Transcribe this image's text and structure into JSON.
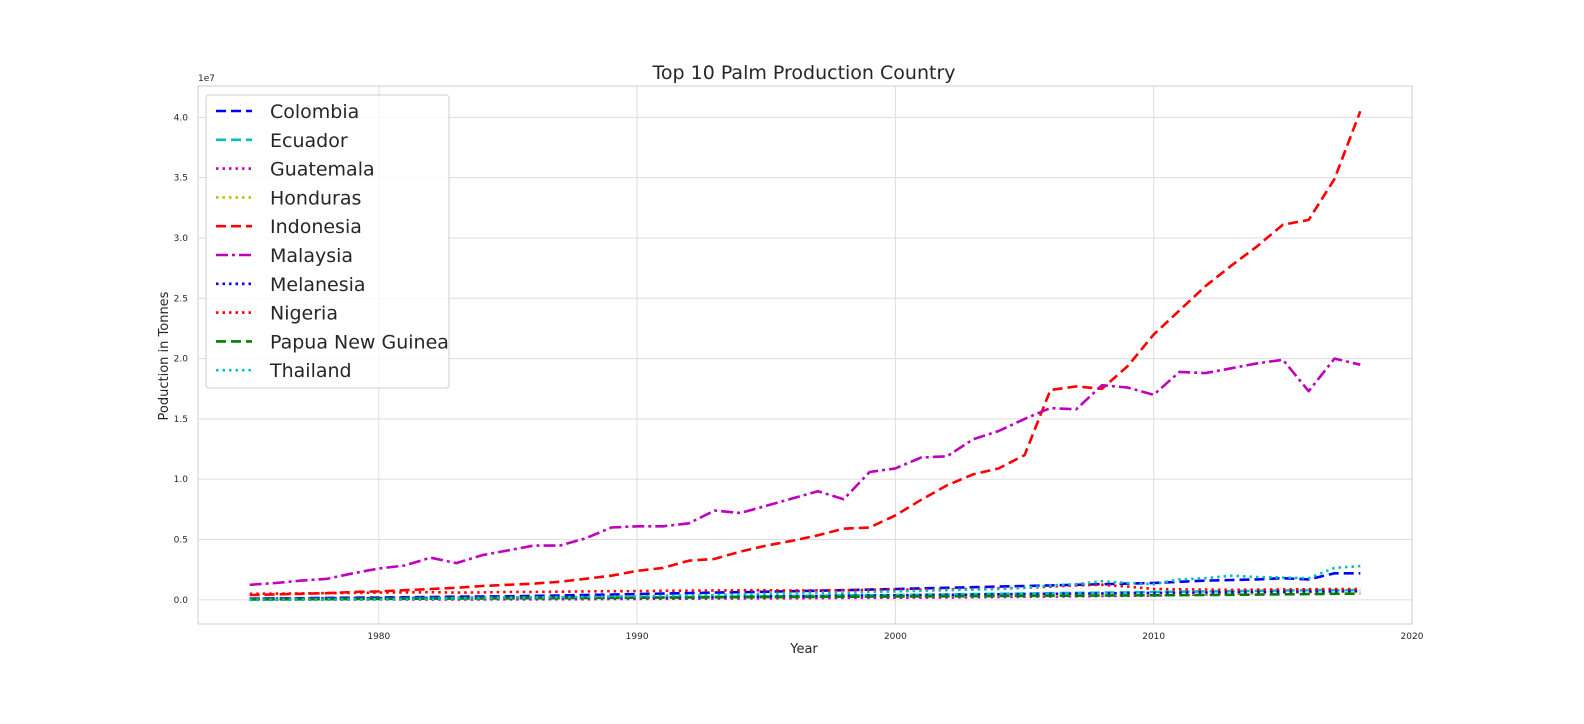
{
  "chart_data": {
    "type": "line",
    "title": "Top 10 Palm Production Country",
    "xlabel": "Year",
    "ylabel": "Poduction in Tonnes",
    "y_multiplier_label": "1e7",
    "xlim": [
      1973,
      2020
    ],
    "ylim": [
      -0.2,
      4.26
    ],
    "y_unit_scale": 10000000,
    "x_ticks": [
      1980,
      1990,
      2000,
      2010,
      2020
    ],
    "x_tick_labels": [
      "1980",
      "1990",
      "2000",
      "2010",
      "2020"
    ],
    "y_ticks": [
      0.0,
      0.5,
      1.0,
      1.5,
      2.0,
      2.5,
      3.0,
      3.5,
      4.0
    ],
    "y_tick_labels": [
      "0.0",
      "0.5",
      "1.0",
      "1.5",
      "2.0",
      "2.5",
      "3.0",
      "3.5",
      "4.0"
    ],
    "grid": true,
    "legend_position": "top-left",
    "x": [
      1975,
      1976,
      1977,
      1978,
      1979,
      1980,
      1981,
      1982,
      1983,
      1984,
      1985,
      1986,
      1987,
      1988,
      1989,
      1990,
      1991,
      1992,
      1993,
      1994,
      1995,
      1996,
      1997,
      1998,
      1999,
      2000,
      2001,
      2002,
      2003,
      2004,
      2005,
      2006,
      2007,
      2008,
      2009,
      2010,
      2011,
      2012,
      2013,
      2014,
      2015,
      2016,
      2017,
      2018
    ],
    "series": [
      {
        "name": "Colombia",
        "color": "#0000ff",
        "dash": "dashed",
        "values": [
          0.01,
          0.012,
          0.014,
          0.016,
          0.018,
          0.02,
          0.022,
          0.024,
          0.026,
          0.028,
          0.03,
          0.033,
          0.036,
          0.04,
          0.044,
          0.048,
          0.052,
          0.056,
          0.06,
          0.064,
          0.068,
          0.072,
          0.076,
          0.08,
          0.085,
          0.09,
          0.095,
          0.1,
          0.105,
          0.11,
          0.115,
          0.12,
          0.125,
          0.13,
          0.135,
          0.14,
          0.15,
          0.16,
          0.165,
          0.17,
          0.18,
          0.17,
          0.22,
          0.22
        ]
      },
      {
        "name": "Ecuador",
        "color": "#00bfbf",
        "dash": "dashed",
        "values": [
          0.005,
          0.006,
          0.007,
          0.008,
          0.009,
          0.01,
          0.011,
          0.012,
          0.013,
          0.014,
          0.015,
          0.016,
          0.017,
          0.018,
          0.019,
          0.02,
          0.022,
          0.024,
          0.026,
          0.028,
          0.03,
          0.032,
          0.034,
          0.036,
          0.038,
          0.04,
          0.042,
          0.045,
          0.048,
          0.05,
          0.052,
          0.055,
          0.058,
          0.06,
          0.062,
          0.065,
          0.068,
          0.07,
          0.072,
          0.075,
          0.078,
          0.08,
          0.08,
          0.08
        ]
      },
      {
        "name": "Guatemala",
        "color": "#bf00bf",
        "dash": "dotted",
        "values": [
          0.001,
          0.001,
          0.002,
          0.002,
          0.002,
          0.003,
          0.003,
          0.003,
          0.004,
          0.004,
          0.005,
          0.005,
          0.006,
          0.006,
          0.007,
          0.008,
          0.009,
          0.01,
          0.011,
          0.012,
          0.013,
          0.014,
          0.015,
          0.016,
          0.017,
          0.018,
          0.019,
          0.02,
          0.022,
          0.024,
          0.026,
          0.028,
          0.03,
          0.032,
          0.034,
          0.036,
          0.04,
          0.045,
          0.05,
          0.055,
          0.06,
          0.065,
          0.07,
          0.075
        ]
      },
      {
        "name": "Honduras",
        "color": "#bfbf00",
        "dash": "dotted",
        "values": [
          0.01,
          0.011,
          0.012,
          0.013,
          0.014,
          0.015,
          0.016,
          0.017,
          0.018,
          0.019,
          0.02,
          0.021,
          0.022,
          0.023,
          0.024,
          0.025,
          0.026,
          0.027,
          0.028,
          0.029,
          0.03,
          0.031,
          0.032,
          0.033,
          0.034,
          0.035,
          0.036,
          0.037,
          0.038,
          0.039,
          0.04,
          0.042,
          0.044,
          0.046,
          0.048,
          0.05,
          0.052,
          0.054,
          0.056,
          0.058,
          0.06,
          0.062,
          0.064,
          0.066
        ]
      },
      {
        "name": "Indonesia",
        "color": "#ff0000",
        "dash": "dashed",
        "values": [
          0.04,
          0.045,
          0.05,
          0.055,
          0.065,
          0.07,
          0.08,
          0.09,
          0.1,
          0.115,
          0.125,
          0.135,
          0.15,
          0.175,
          0.2,
          0.24,
          0.265,
          0.325,
          0.34,
          0.4,
          0.45,
          0.49,
          0.535,
          0.59,
          0.6,
          0.7,
          0.83,
          0.95,
          1.04,
          1.09,
          1.2,
          1.74,
          1.77,
          1.75,
          1.94,
          2.2,
          2.4,
          2.6,
          2.77,
          2.93,
          3.11,
          3.15,
          3.49,
          4.05
        ]
      },
      {
        "name": "Malaysia",
        "color": "#bf00bf",
        "dash": "dashdot",
        "values": [
          0.125,
          0.14,
          0.16,
          0.175,
          0.22,
          0.26,
          0.285,
          0.35,
          0.305,
          0.37,
          0.41,
          0.45,
          0.45,
          0.51,
          0.6,
          0.61,
          0.61,
          0.635,
          0.74,
          0.72,
          0.78,
          0.84,
          0.9,
          0.835,
          1.06,
          1.09,
          1.18,
          1.19,
          1.33,
          1.4,
          1.5,
          1.59,
          1.58,
          1.78,
          1.76,
          1.7,
          1.89,
          1.88,
          1.92,
          1.96,
          1.99,
          1.73,
          2.0,
          1.95
        ]
      },
      {
        "name": "Melanesia",
        "color": "#0000ff",
        "dash": "dotted",
        "values": [
          0.008,
          0.009,
          0.01,
          0.011,
          0.012,
          0.013,
          0.014,
          0.015,
          0.016,
          0.017,
          0.018,
          0.019,
          0.02,
          0.021,
          0.022,
          0.023,
          0.024,
          0.025,
          0.026,
          0.027,
          0.028,
          0.03,
          0.032,
          0.034,
          0.036,
          0.038,
          0.04,
          0.042,
          0.044,
          0.046,
          0.048,
          0.05,
          0.052,
          0.054,
          0.056,
          0.058,
          0.06,
          0.062,
          0.064,
          0.066,
          0.068,
          0.07,
          0.072,
          0.074
        ]
      },
      {
        "name": "Nigeria",
        "color": "#ff0000",
        "dash": "dotted",
        "values": [
          0.05,
          0.052,
          0.054,
          0.056,
          0.058,
          0.06,
          0.062,
          0.064,
          0.06,
          0.062,
          0.065,
          0.066,
          0.068,
          0.07,
          0.072,
          0.073,
          0.075,
          0.077,
          0.078,
          0.08,
          0.08,
          0.078,
          0.079,
          0.08,
          0.083,
          0.084,
          0.085,
          0.087,
          0.09,
          0.095,
          0.1,
          0.11,
          0.12,
          0.125,
          0.11,
          0.09,
          0.088,
          0.085,
          0.083,
          0.085,
          0.087,
          0.088,
          0.09,
          0.09
        ]
      },
      {
        "name": "Papua New Guinea",
        "color": "#008000",
        "dash": "dashed",
        "values": [
          0.003,
          0.004,
          0.005,
          0.006,
          0.007,
          0.008,
          0.009,
          0.01,
          0.011,
          0.012,
          0.013,
          0.014,
          0.015,
          0.016,
          0.017,
          0.018,
          0.019,
          0.02,
          0.021,
          0.022,
          0.023,
          0.024,
          0.025,
          0.026,
          0.027,
          0.028,
          0.029,
          0.03,
          0.031,
          0.032,
          0.033,
          0.034,
          0.035,
          0.036,
          0.037,
          0.038,
          0.039,
          0.04,
          0.042,
          0.044,
          0.046,
          0.048,
          0.05,
          0.052
        ]
      },
      {
        "name": "Thailand",
        "color": "#00bfbf",
        "dash": "dotted",
        "values": [
          0.001,
          0.002,
          0.003,
          0.004,
          0.005,
          0.006,
          0.008,
          0.01,
          0.012,
          0.015,
          0.018,
          0.02,
          0.022,
          0.025,
          0.028,
          0.03,
          0.034,
          0.038,
          0.04,
          0.045,
          0.05,
          0.055,
          0.06,
          0.055,
          0.065,
          0.07,
          0.075,
          0.08,
          0.085,
          0.09,
          0.1,
          0.12,
          0.13,
          0.155,
          0.14,
          0.13,
          0.17,
          0.18,
          0.2,
          0.19,
          0.185,
          0.18,
          0.265,
          0.28
        ]
      }
    ]
  }
}
